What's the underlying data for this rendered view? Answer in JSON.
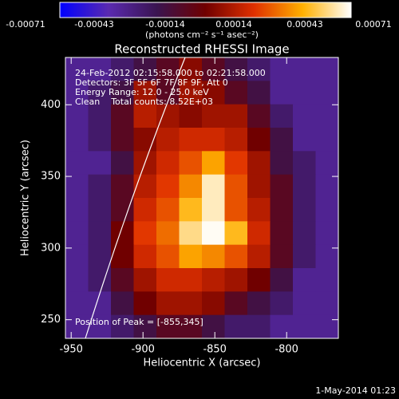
{
  "chart_data": {
    "type": "heatmap",
    "title": "Reconstructed RHESSI Image",
    "xlabel": "Heliocentric X (arcsec)",
    "ylabel": "Heliocentric Y (arcsec)",
    "xlim": [
      -954,
      -764
    ],
    "ylim": [
      237,
      433
    ],
    "xticks": [
      -950,
      -900,
      -850,
      -800
    ],
    "yticks": [
      250,
      300,
      350,
      400
    ],
    "colorbar": {
      "lim": [
        -0.00071,
        0.00071
      ],
      "ticks": [
        -0.00071,
        -0.00043,
        -0.00014,
        0.00014,
        0.00043,
        0.00071
      ],
      "label": "(photons cm⁻² s⁻¹ asec⁻²)",
      "colormap": [
        "#0000ff",
        "#5a2ab0",
        "#3a1450",
        "#700000",
        "#e03000",
        "#ffb000",
        "#ffffff"
      ]
    },
    "annotations": [
      "24-Feb-2012 02:15:58.000 to 02:21:58.000",
      "Detectors: 3F 5F 6F 7F 8F 9F, Att 0",
      "Energy Range: 12.0 - 25.0 keV",
      "Clean    Total counts: 8.52E+03"
    ],
    "peak_label": "Position of Peak = [-855,345]",
    "timestamp": "1-May-2014 01:23",
    "z": [
      [
        -0.0004,
        -0.0004,
        -0.0003,
        -0.0002,
        -0.0001,
        5e-05,
        -0.0001,
        -0.0002,
        -0.0003,
        -0.0004,
        -0.0004,
        -0.0004
      ],
      [
        -0.0004,
        -0.0003,
        -0.0002,
        0.0001,
        -0.0001,
        0.0001,
        5e-05,
        -0.0001,
        -0.0002,
        -0.0004,
        -0.0004,
        -0.0004
      ],
      [
        -0.0004,
        -0.0003,
        -0.0001,
        0.00015,
        0.0001,
        5e-05,
        0.0001,
        0.0001,
        -0.0001,
        -0.0003,
        -0.0004,
        -0.0004
      ],
      [
        -0.0004,
        -0.0003,
        -0.0001,
        5e-05,
        0.00015,
        0.0002,
        0.0002,
        0.00015,
        0,
        -0.0002,
        -0.0004,
        -0.0004
      ],
      [
        -0.0004,
        -0.0004,
        -0.0002,
        0.0001,
        0.0002,
        0.0003,
        0.00045,
        0.00025,
        0.0001,
        -0.0002,
        -0.0003,
        -0.0004
      ],
      [
        -0.0004,
        -0.0003,
        -0.0001,
        0.00015,
        0.00025,
        0.0004,
        0.00065,
        0.0003,
        0.0001,
        -0.0001,
        -0.0003,
        -0.0004
      ],
      [
        -0.0004,
        -0.0003,
        -0.0001,
        0.0002,
        0.0003,
        0.0005,
        0.00065,
        0.0003,
        0.00015,
        -0.0001,
        -0.0003,
        -0.0004
      ],
      [
        -0.0004,
        -0.0003,
        0,
        0.00025,
        0.00035,
        0.0006,
        0.0007,
        0.0005,
        0.0002,
        -0.0001,
        -0.0003,
        -0.0004
      ],
      [
        -0.0004,
        -0.0003,
        0,
        0.0002,
        0.0003,
        0.00045,
        0.0004,
        0.0003,
        0.00015,
        -0.0001,
        -0.0003,
        -0.0004
      ],
      [
        -0.0004,
        -0.0003,
        -0.0001,
        0.0001,
        0.0002,
        0.0002,
        0.00015,
        0.0001,
        0,
        -0.0002,
        -0.0004,
        -0.0004
      ],
      [
        -0.0004,
        -0.0004,
        -0.0002,
        0,
        0.0001,
        0.0001,
        5e-05,
        -0.0001,
        -0.0002,
        -0.0003,
        -0.0004,
        -0.0004
      ],
      [
        -0.0004,
        -0.0004,
        -0.0003,
        -0.0002,
        -0.0001,
        -0.0001,
        -0.0002,
        -0.0003,
        -0.0003,
        -0.0004,
        -0.0004,
        -0.0004
      ]
    ]
  }
}
